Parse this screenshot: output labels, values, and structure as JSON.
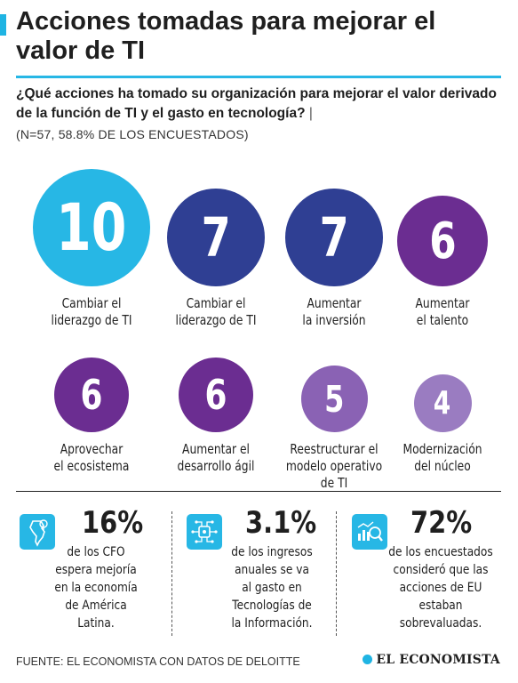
{
  "header": {
    "title": "Acciones tomadas para mejorar el valor de TI"
  },
  "question": {
    "text": "¿Qué acciones ha tomado su organización para mejorar el valor derivado de la función de TI y el gasto en tecnología?",
    "separator": "|",
    "note": "(N=57, 58.8% DE LOS ENCUESTADOS)"
  },
  "chart_data": {
    "type": "bubble",
    "categories": [
      "Cambiar el liderazgo de TI",
      "Cambiar el liderazgo de TI",
      "Aumentar la inversión",
      "Aumentar el talento",
      "Aprovechar el ecosistema",
      "Aumentar el desarrollo ágil",
      "Reestructurar el modelo operativo de TI",
      "Modernización del núcleo"
    ],
    "values": [
      10,
      7,
      7,
      6,
      6,
      6,
      5,
      4
    ],
    "colors": [
      "#27b7e5",
      "#2f3f93",
      "#2f3f93",
      "#6b2d91",
      "#6b2d91",
      "#6b2d91",
      "#8a62b4",
      "#9a7cc1"
    ],
    "title": "",
    "xlabel": "",
    "ylabel": ""
  },
  "bubble_labels": [
    [
      "Cambiar el",
      "liderazgo de TI"
    ],
    [
      "Cambiar el",
      "liderazgo de TI"
    ],
    [
      "Aumentar",
      "la inversión"
    ],
    [
      "Aumentar",
      "el talento"
    ],
    [
      "Aprovechar",
      "el ecosistema"
    ],
    [
      "Aumentar el",
      "desarrollo ágil"
    ],
    [
      "Reestructurar el",
      "modelo operativo",
      "de TI"
    ],
    [
      "Modernización",
      "del núcleo"
    ]
  ],
  "stats": [
    {
      "value": "16%",
      "text": [
        "de los CFO",
        "espera mejoría",
        "en la economía",
        "de América",
        "Latina."
      ],
      "icon": "latin-america-map-icon"
    },
    {
      "value": "3.1%",
      "text": [
        "de los ingresos",
        "anuales se va",
        "al gasto en",
        "Tecnologías de",
        "la Información."
      ],
      "icon": "circuit-chip-icon"
    },
    {
      "value": "72%",
      "text": [
        "de los encuestados",
        "consideró que las",
        "acciones de EU",
        "estaban",
        "sobrevaluadas."
      ],
      "icon": "chart-magnifier-icon"
    }
  ],
  "footer": {
    "source": "FUENTE: EL ECONOMISTA CON DATOS DE DELOITTE",
    "logo": "EL ECONOMISTA"
  }
}
